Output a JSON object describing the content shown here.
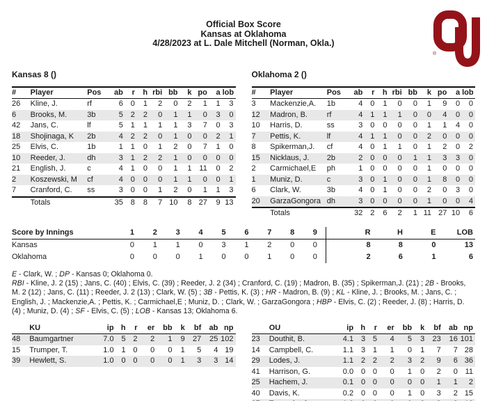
{
  "header": {
    "title": "Official Box Score",
    "matchup": "Kansas at Oklahoma",
    "date_venue": "4/28/2023 at L. Dale Mitchell (Norman, Okla.)"
  },
  "logo": {
    "team": "OU",
    "color": "#941319",
    "registered_mark": "®"
  },
  "batting_columns": [
    "#",
    "Player",
    "Pos",
    "ab",
    "r",
    "h",
    "rbi",
    "bb",
    "k",
    "po",
    "a",
    "lob"
  ],
  "kansas": {
    "team_line": "Kansas 8 ()",
    "rows": [
      [
        "26",
        "Kline, J.",
        "rf",
        "6",
        "0",
        "1",
        "2",
        "0",
        "2",
        "1",
        "1",
        "3"
      ],
      [
        "6",
        "Brooks, M.",
        "3b",
        "5",
        "2",
        "2",
        "0",
        "1",
        "1",
        "0",
        "3",
        "0"
      ],
      [
        "42",
        "Jans, C.",
        "lf",
        "5",
        "1",
        "1",
        "1",
        "1",
        "3",
        "7",
        "0",
        "3"
      ],
      [
        "18",
        "Shojinaga, K",
        "2b",
        "4",
        "2",
        "2",
        "0",
        "1",
        "0",
        "0",
        "2",
        "1"
      ],
      [
        "25",
        "Elvis, C.",
        "1b",
        "1",
        "1",
        "0",
        "1",
        "2",
        "0",
        "7",
        "1",
        "0"
      ],
      [
        "10",
        "Reeder, J.",
        "dh",
        "3",
        "1",
        "2",
        "2",
        "1",
        "0",
        "0",
        "0",
        "0"
      ],
      [
        "21",
        "English, J.",
        "c",
        "4",
        "1",
        "0",
        "0",
        "1",
        "1",
        "11",
        "0",
        "2"
      ],
      [
        "2",
        "Koszewski, M",
        "cf",
        "4",
        "0",
        "0",
        "0",
        "1",
        "1",
        "0",
        "0",
        "1"
      ],
      [
        "7",
        "Cranford, C.",
        "ss",
        "3",
        "0",
        "0",
        "1",
        "2",
        "0",
        "1",
        "1",
        "3"
      ]
    ],
    "totals": [
      "",
      "Totals",
      "",
      "35",
      "8",
      "8",
      "7",
      "10",
      "8",
      "27",
      "9",
      "13"
    ]
  },
  "oklahoma": {
    "team_line": "Oklahoma 2 ()",
    "rows": [
      [
        "3",
        "Mackenzie,A.",
        "1b",
        "4",
        "0",
        "1",
        "0",
        "0",
        "1",
        "9",
        "0",
        "0"
      ],
      [
        "12",
        "Madron, B.",
        "rf",
        "4",
        "1",
        "1",
        "1",
        "0",
        "0",
        "4",
        "0",
        "0"
      ],
      [
        "10",
        "Harris, D.",
        "ss",
        "3",
        "0",
        "0",
        "0",
        "0",
        "1",
        "1",
        "4",
        "0"
      ],
      [
        "7",
        "Pettis, K.",
        "lf",
        "4",
        "1",
        "1",
        "0",
        "0",
        "2",
        "0",
        "0",
        "0"
      ],
      [
        "8",
        "Spikerman,J.",
        "cf",
        "4",
        "0",
        "1",
        "1",
        "0",
        "1",
        "2",
        "0",
        "2"
      ],
      [
        "15",
        "Nicklaus, J.",
        "2b",
        "2",
        "0",
        "0",
        "0",
        "1",
        "1",
        "3",
        "3",
        "0"
      ],
      [
        "2",
        "Carmichael,E",
        "ph",
        "1",
        "0",
        "0",
        "0",
        "0",
        "1",
        "0",
        "0",
        "0"
      ],
      [
        "1",
        "Muniz, D.",
        "c",
        "3",
        "0",
        "1",
        "0",
        "0",
        "1",
        "8",
        "0",
        "0"
      ],
      [
        "6",
        "Clark, W.",
        "3b",
        "4",
        "0",
        "1",
        "0",
        "0",
        "2",
        "0",
        "3",
        "0"
      ],
      [
        "20",
        "GarzaGongora",
        "dh",
        "3",
        "0",
        "0",
        "0",
        "0",
        "1",
        "0",
        "0",
        "4"
      ]
    ],
    "totals": [
      "",
      "Totals",
      "",
      "32",
      "2",
      "6",
      "2",
      "1",
      "11",
      "27",
      "10",
      "6"
    ]
  },
  "innings": {
    "label": "Score by Innings",
    "header": [
      "1",
      "2",
      "3",
      "4",
      "5",
      "6",
      "7",
      "8",
      "9",
      "R",
      "H",
      "E",
      "LOB"
    ],
    "rows": [
      [
        "Kansas",
        "0",
        "1",
        "1",
        "0",
        "3",
        "1",
        "2",
        "0",
        "0",
        "8",
        "8",
        "0",
        "13"
      ],
      [
        "Oklahoma",
        "0",
        "0",
        "0",
        "1",
        "0",
        "0",
        "1",
        "0",
        "0",
        "2",
        "6",
        "1",
        "6"
      ]
    ]
  },
  "notes": {
    "line1": [
      {
        "i": "E"
      },
      {
        "t": " - Clark, W. ; "
      },
      {
        "i": "DP"
      },
      {
        "t": " - Kansas 0; Oklahoma 0."
      }
    ],
    "para": [
      {
        "i": "RBI"
      },
      {
        "t": " - Kline, J. 2 (15) ; Jans, C. (40) ; Elvis, C. (39) ; Reeder, J. 2 (34) ; Cranford, C. (19) ; Madron, B. (35) ; Spikerman,J. (21) ; "
      },
      {
        "i": "2B"
      },
      {
        "t": " - Brooks, M. 2 (12) ; Jans, C. (11) ; Reeder, J. 2 (13) ; Clark, W. (5) ; "
      },
      {
        "i": "3B"
      },
      {
        "t": " - Pettis, K. (3) ; "
      },
      {
        "i": "HR"
      },
      {
        "t": " - Madron, B. (9) ; "
      },
      {
        "i": "KL"
      },
      {
        "t": " - Kline, J. ; Brooks, M. ; Jans, C. ; English, J. ; Mackenzie,A. ; Pettis, K. ; Carmichael,E ; Muniz, D. ; Clark, W. ; GarzaGongora ; "
      },
      {
        "i": "HBP"
      },
      {
        "t": " - Elvis, C. (2) ; Reeder, J. (8) ; Harris, D. (4) ; Muniz, D. (4) ; "
      },
      {
        "i": "SF"
      },
      {
        "t": " - Elvis, C. (5) ; "
      },
      {
        "i": "LOB"
      },
      {
        "t": " - Kansas 13; Oklahoma 6."
      }
    ]
  },
  "pitching_columns": [
    "ip",
    "h",
    "r",
    "er",
    "bb",
    "k",
    "bf",
    "ab",
    "np"
  ],
  "ku_pitching": {
    "team_label": "KU",
    "rows": [
      [
        "48",
        "Baumgartner",
        "7.0",
        "5",
        "2",
        "2",
        "1",
        "9",
        "27",
        "25",
        "102"
      ],
      [
        "15",
        "Trumper, T.",
        "1.0",
        "1",
        "0",
        "0",
        "0",
        "1",
        "5",
        "4",
        "19"
      ],
      [
        "39",
        "Hewlett, S.",
        "1.0",
        "0",
        "0",
        "0",
        "0",
        "1",
        "3",
        "3",
        "14"
      ]
    ]
  },
  "ou_pitching": {
    "team_label": "OU",
    "rows": [
      [
        "23",
        "Douthit, B.",
        "4.1",
        "3",
        "5",
        "4",
        "5",
        "3",
        "23",
        "16",
        "101"
      ],
      [
        "14",
        "Campbell, C.",
        "1.1",
        "3",
        "1",
        "1",
        "0",
        "1",
        "7",
        "7",
        "28"
      ],
      [
        "29",
        "Lodes, J.",
        "1.1",
        "2",
        "2",
        "2",
        "3",
        "2",
        "9",
        "6",
        "36"
      ],
      [
        "41",
        "Harrison, G.",
        "0.0",
        "0",
        "0",
        "0",
        "1",
        "0",
        "2",
        "0",
        "11"
      ],
      [
        "25",
        "Hachem, J.",
        "0.1",
        "0",
        "0",
        "0",
        "0",
        "0",
        "1",
        "1",
        "2"
      ],
      [
        "40",
        "Davis, K.",
        "0.2",
        "0",
        "0",
        "0",
        "1",
        "0",
        "3",
        "2",
        "15"
      ],
      [
        "37",
        "Turnquist,C.",
        "1.0",
        "0",
        "0",
        "0",
        "0",
        "2",
        "3",
        "3",
        "12"
      ]
    ]
  }
}
